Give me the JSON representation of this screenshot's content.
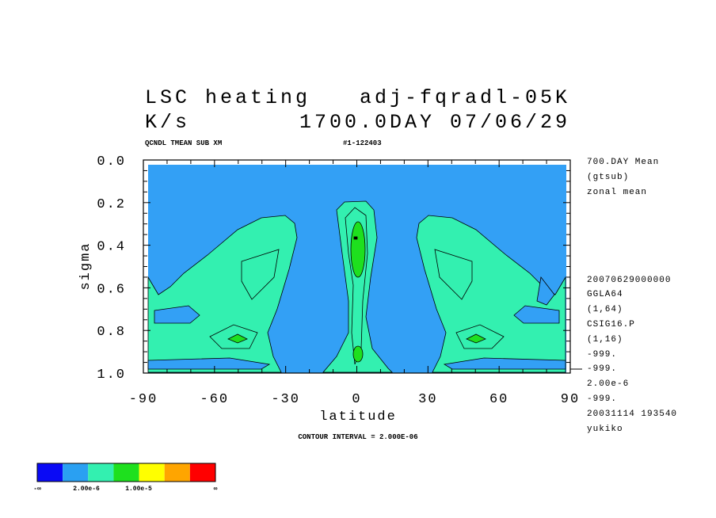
{
  "chart_data": {
    "type": "contour",
    "title": [
      "LSC heating",
      "adj-fqradl-05K"
    ],
    "subtitle": [
      "K/s",
      "1700.0DAY 07/06/29"
    ],
    "header": [
      "QCNDL TMEAN SUB XM",
      "#1-122403"
    ],
    "x_label": "latitude",
    "y_label": "sigma",
    "xlim": [
      -90,
      90
    ],
    "ylim": [
      0,
      1
    ],
    "xticks": [
      -90,
      -60,
      -30,
      0,
      30,
      60,
      90
    ],
    "yticks": [
      {
        "value": 0,
        "label": "0.0"
      },
      0.2,
      0.4,
      0.6,
      0.8,
      {
        "value": 1,
        "label": "1.0"
      }
    ],
    "side_notes_top": [
      "700.DAY Mean",
      "(gtsub)",
      "zonal mean"
    ],
    "side_notes_bottom": [
      "20070629000000",
      "GGLA64",
      "(1,64)",
      "CSIG16.P",
      "(1,16)",
      "-999.",
      "-999.",
      "2.00e-6",
      "-999.",
      "20031114 193540",
      "yukiko"
    ],
    "contour_interval": "CONTOUR INTERVAL = 2.000E-06",
    "colorbar": {
      "colors": [
        "#0a0af5",
        "#2aa0f2",
        "#33f0b0",
        "#1ee01e",
        "#ffff00",
        "#ffa500",
        "#ff0000"
      ],
      "labels": [
        "-∞",
        "2.00e-6",
        "1.00e-5",
        "∞"
      ]
    }
  }
}
